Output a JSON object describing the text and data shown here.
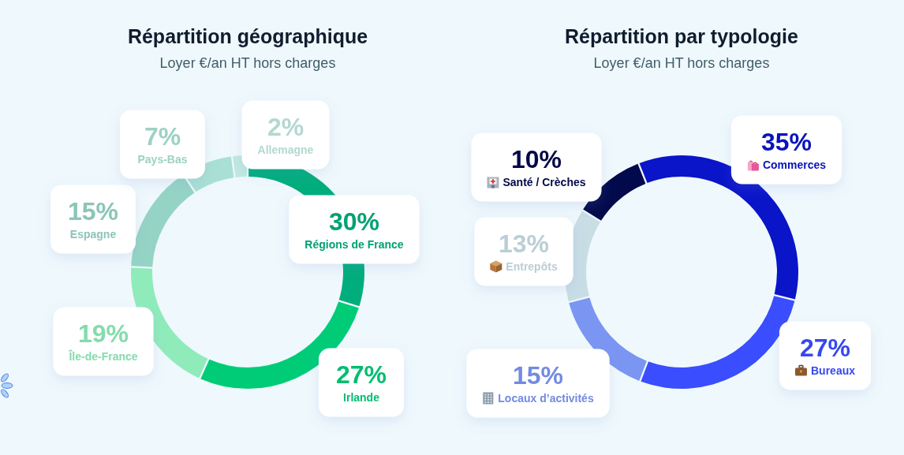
{
  "chart_data": [
    {
      "type": "donut",
      "title": "Répartition géographique",
      "subtitle": "Loyer €/an HT hors charges",
      "categories": [
        "Régions de France",
        "Irlande",
        "Île-de-France",
        "Espagne",
        "Pays-Bas",
        "Allemagne"
      ],
      "values": [
        30,
        27,
        19,
        15,
        7,
        2
      ],
      "value_labels": [
        "30%",
        "27%",
        "19%",
        "15%",
        "7%",
        "2%"
      ],
      "colors": [
        "#00ad7c",
        "#00cc78",
        "#8febba",
        "#95d4c4",
        "#a9e0d3",
        "#c0e8df"
      ]
    },
    {
      "type": "donut",
      "title": "Répartition par typologie",
      "subtitle": "Loyer €/an HT hors charges",
      "categories": [
        "Commerces",
        "Bureaux",
        "Locaux d’activités",
        "Entrepôts",
        "Santé / Crèches"
      ],
      "values": [
        35,
        27,
        15,
        13,
        10
      ],
      "value_labels": [
        "35%",
        "27%",
        "15%",
        "13%",
        "10%"
      ],
      "colors": [
        "#0a14c8",
        "#3a4dff",
        "#7a95f2",
        "#c9dde5",
        "#020a4b"
      ]
    }
  ]
}
